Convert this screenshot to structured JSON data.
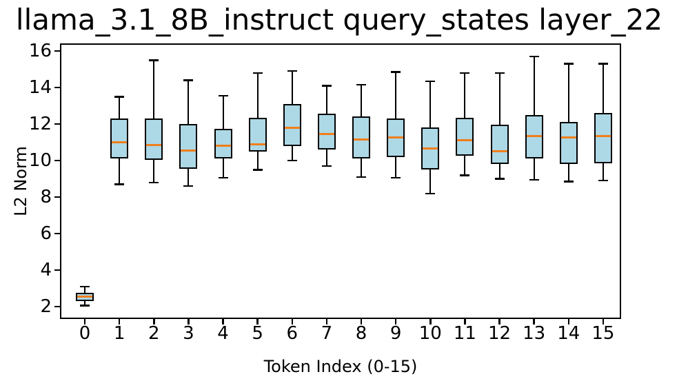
{
  "chart_data": {
    "type": "box",
    "title": "llama_3.1_8B_instruct query_states layer_22",
    "xlabel": "Token Index (0-15)",
    "ylabel": "L2 Norm",
    "x_ticks": [
      "0",
      "1",
      "2",
      "3",
      "4",
      "5",
      "6",
      "7",
      "8",
      "9",
      "10",
      "11",
      "12",
      "13",
      "14",
      "15"
    ],
    "y_ticks": [
      2,
      4,
      6,
      8,
      10,
      12,
      14,
      16
    ],
    "ylim": [
      1.36,
      16.38
    ],
    "xlim": [
      -0.7,
      15.5
    ],
    "grid": false,
    "legend": null,
    "colors": {
      "background": "#ffffff",
      "box_fill": "#ADD8E6",
      "box_edge": "#000000",
      "median": "#F07E1A",
      "whisker": "#000000",
      "text": "#000000"
    },
    "boxes": [
      {
        "token": 0,
        "whislo": 2.05,
        "q1": 2.3,
        "med": 2.55,
        "q3": 2.75,
        "whishi": 3.1
      },
      {
        "token": 1,
        "whislo": 8.7,
        "q1": 10.1,
        "med": 11.0,
        "q3": 12.3,
        "whishi": 13.5
      },
      {
        "token": 2,
        "whislo": 8.8,
        "q1": 10.05,
        "med": 10.85,
        "q3": 12.3,
        "whishi": 15.5
      },
      {
        "token": 3,
        "whislo": 8.6,
        "q1": 9.55,
        "med": 10.55,
        "q3": 12.0,
        "whishi": 14.4
      },
      {
        "token": 4,
        "whislo": 9.05,
        "q1": 10.1,
        "med": 10.8,
        "q3": 11.75,
        "whishi": 13.55
      },
      {
        "token": 5,
        "whislo": 9.5,
        "q1": 10.5,
        "med": 10.9,
        "q3": 12.35,
        "whishi": 14.8
      },
      {
        "token": 6,
        "whislo": 10.0,
        "q1": 10.8,
        "med": 11.8,
        "q3": 13.1,
        "whishi": 14.9
      },
      {
        "token": 7,
        "whislo": 9.7,
        "q1": 10.6,
        "med": 11.45,
        "q3": 12.55,
        "whishi": 14.1
      },
      {
        "token": 8,
        "whislo": 9.1,
        "q1": 10.1,
        "med": 11.15,
        "q3": 12.4,
        "whishi": 14.15
      },
      {
        "token": 9,
        "whislo": 9.05,
        "q1": 10.2,
        "med": 11.25,
        "q3": 12.3,
        "whishi": 14.85
      },
      {
        "token": 10,
        "whislo": 8.2,
        "q1": 9.5,
        "med": 10.65,
        "q3": 11.8,
        "whishi": 14.35
      },
      {
        "token": 11,
        "whislo": 9.2,
        "q1": 10.25,
        "med": 11.1,
        "q3": 12.35,
        "whishi": 14.8
      },
      {
        "token": 12,
        "whislo": 9.0,
        "q1": 9.8,
        "med": 10.5,
        "q3": 11.95,
        "whishi": 14.8
      },
      {
        "token": 13,
        "whislo": 8.95,
        "q1": 10.1,
        "med": 11.35,
        "q3": 12.5,
        "whishi": 15.7
      },
      {
        "token": 14,
        "whislo": 8.85,
        "q1": 9.8,
        "med": 11.25,
        "q3": 12.1,
        "whishi": 15.3
      },
      {
        "token": 15,
        "whislo": 8.9,
        "q1": 9.85,
        "med": 11.35,
        "q3": 12.6,
        "whishi": 15.3
      }
    ]
  }
}
